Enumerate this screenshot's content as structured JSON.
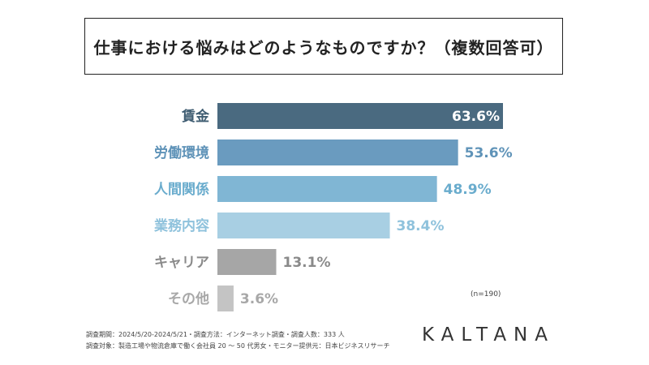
{
  "chart_data": {
    "type": "bar",
    "orientation": "horizontal",
    "title": "仕事における悩みはどのようなものですか？（複数回答可）",
    "categories": [
      "賃金",
      "労働環境",
      "人間関係",
      "業務内容",
      "キャリア",
      "その他"
    ],
    "values": [
      63.6,
      53.6,
      48.9,
      38.4,
      13.1,
      3.6
    ],
    "value_labels": [
      "63.6%",
      "53.6%",
      "48.9%",
      "38.4%",
      "13.1%",
      "3.6%"
    ],
    "bar_colors": [
      "#4a6a80",
      "#6a9bbf",
      "#80b6d4",
      "#a8cfe3",
      "#a6a6a6",
      "#c4c4c4"
    ],
    "label_colors": [
      "#3f5d72",
      "#5f93b8",
      "#6aaccd",
      "#8fc2dc",
      "#8a8a8a",
      "#a8a8a8"
    ],
    "xlim": [
      0,
      63.6
    ],
    "grid": false,
    "legend": "none"
  },
  "note": "(n=190)",
  "footnotes": [
    "調査期間：2024/5/20-2024/5/21・調査方法：インターネット調査・調査人数：333 人",
    "調査対象：製造工場や物流倉庫で働く会社員 20 〜 50 代男女・モニター提供元：日本ビジネスリサーチ"
  ],
  "logo": "KALTANA"
}
